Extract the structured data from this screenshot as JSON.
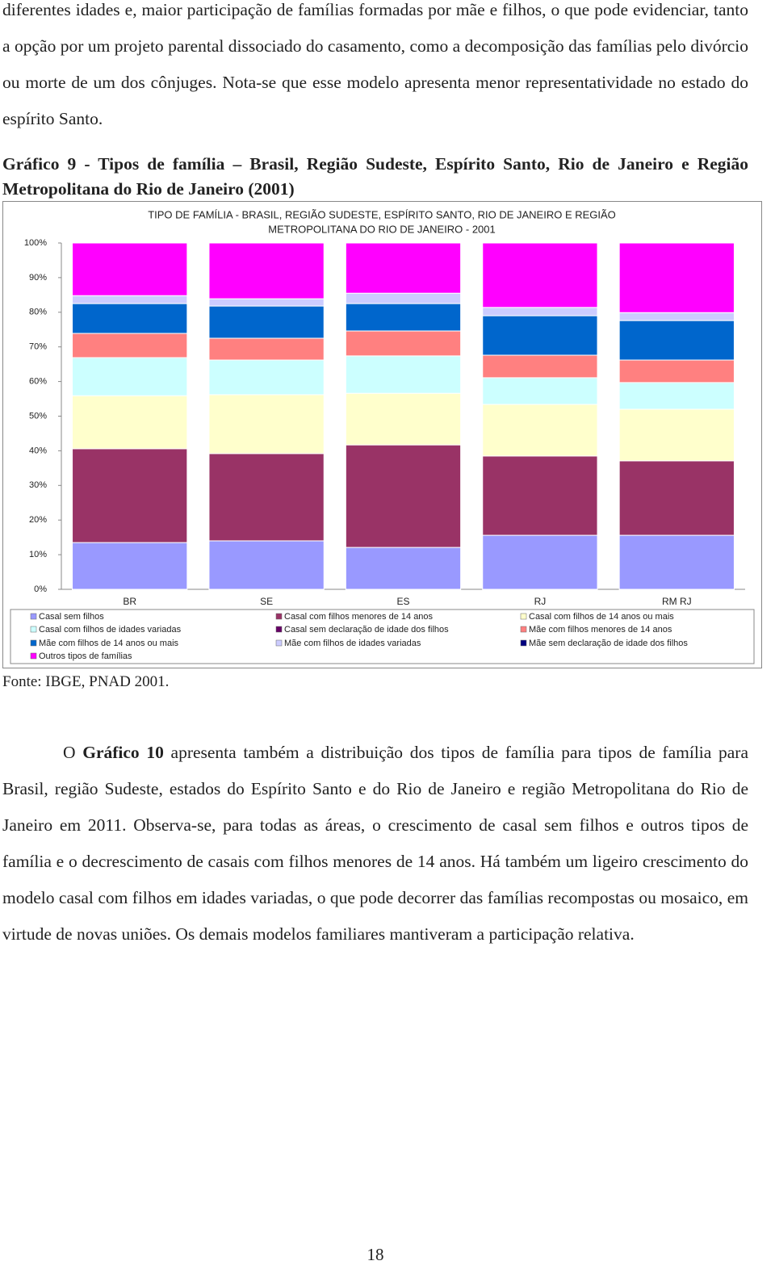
{
  "paragraph_1": "diferentes idades e, maior participação de famílias formadas por mãe e filhos, o que pode evidenciar, tanto a opção por um projeto parental dissociado do casamento, como a decomposição das famílias pelo divórcio ou morte de um dos cônjuges. Nota-se que esse modelo apresenta menor representatividade no estado do espírito Santo.",
  "caption": "Gráfico 9 - Tipos de família – Brasil, Região Sudeste, Espírito Santo, Rio de Janeiro e Região Metropolitana do Rio de Janeiro (2001)",
  "chart_data": {
    "type": "stacked_bar",
    "title": [
      "TIPO DE FAMÍLIA - BRASIL, REGIÃO SUDESTE, ESPÍRITO SANTO, RIO DE JANEIRO E REGIÃO",
      "METROPOLITANA DO RIO DE JANEIRO - 2001"
    ],
    "categories": [
      "BR",
      "SE",
      "ES",
      "RJ",
      "RM RJ"
    ],
    "ylim": [
      0,
      100
    ],
    "yticks": [
      {
        "value": 0,
        "label": "0%"
      },
      {
        "value": 10,
        "label": "10%"
      },
      {
        "value": 20,
        "label": "20%"
      },
      {
        "value": 30,
        "label": "30%"
      },
      {
        "value": 40,
        "label": "40%"
      },
      {
        "value": 50,
        "label": "50%"
      },
      {
        "value": 60,
        "label": "60%"
      },
      {
        "value": 70,
        "label": "70%"
      },
      {
        "value": 80,
        "label": "80%"
      },
      {
        "value": 90,
        "label": "90%"
      },
      {
        "value": 100,
        "label": "100%"
      }
    ],
    "grid": false,
    "series": [
      {
        "name": "Casal sem filhos",
        "color": "#9999ff",
        "values": [
          13.5,
          14.0,
          12.1,
          15.6,
          15.6
        ]
      },
      {
        "name": "Casal com filhos menores de 14 anos",
        "color": "#993366",
        "values": [
          27.1,
          25.2,
          29.6,
          22.9,
          21.5
        ]
      },
      {
        "name": "Casal com filhos de 14 anos ou mais",
        "color": "#ffffcc",
        "values": [
          15.3,
          17.0,
          14.9,
          14.9,
          14.9
        ]
      },
      {
        "name": "Casal com filhos de idades variadas",
        "color": "#ccffff",
        "values": [
          11.0,
          10.0,
          10.8,
          7.7,
          7.7
        ]
      },
      {
        "name": "Casal sem declaração de idade dos filhos",
        "color": "#660066",
        "values": [
          0,
          0,
          0,
          0,
          0
        ]
      },
      {
        "name": "Mãe com filhos menores de 14 anos",
        "color": "#ff8080",
        "values": [
          7.0,
          6.3,
          7.2,
          6.5,
          6.5
        ]
      },
      {
        "name": "Mãe com filhos de 14 anos ou mais",
        "color": "#0066cc",
        "values": [
          8.6,
          9.3,
          7.9,
          11.4,
          11.4
        ]
      },
      {
        "name": "Mãe com filhos de idades variadas",
        "color": "#ccccff",
        "values": [
          2.3,
          2.1,
          3.0,
          2.4,
          2.3
        ]
      },
      {
        "name": "Mãe sem declaração de idade dos filhos",
        "color": "#000080",
        "values": [
          0,
          0,
          0,
          0,
          0
        ]
      },
      {
        "name": "Outros tipos de famílias",
        "color": "#ff00ff",
        "values": [
          15.2,
          16.1,
          14.5,
          18.6,
          20.1
        ]
      }
    ]
  },
  "source": "Fonte: IBGE, PNAD 2001.",
  "paragraph_2": [
    "O ",
    "Gráfico 10",
    " apresenta também a distribuição dos tipos de família para tipos de família para Brasil, região Sudeste, estados do Espírito Santo e do Rio de Janeiro e região Metropolitana do Rio de Janeiro em 2011. Observa-se, para todas as áreas, o crescimento de casal sem filhos e outros tipos de família e o decrescimento de casais com filhos menores de 14 anos. Há também um ligeiro crescimento do modelo casal com filhos em idades variadas, o que pode decorrer das famílias recompostas ou mosaico, em virtude de novas uniões. Os demais modelos familiares mantiveram a participação relativa."
  ],
  "page_number": "18"
}
